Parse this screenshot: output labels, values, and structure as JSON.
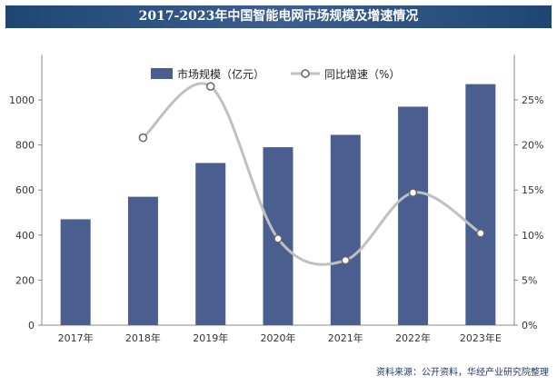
{
  "chart_data": {
    "type": "bar",
    "title": "2017-2023年中国智能电网市场规模及增速情况",
    "categories": [
      "2017年",
      "2018年",
      "2019年",
      "2020年",
      "2021年",
      "2022年",
      "2023年E"
    ],
    "series": [
      {
        "name": "市场规模（亿元）",
        "type": "bar",
        "axis": "left",
        "values": [
          470,
          570,
          720,
          790,
          845,
          970,
          1070
        ],
        "color": "#4a5f8f"
      },
      {
        "name": "同比增速（%）",
        "type": "line",
        "axis": "right",
        "values": [
          null,
          20.8,
          26.5,
          9.6,
          7.2,
          14.7,
          10.2
        ],
        "color": "#c0c0c0"
      }
    ],
    "y_left": {
      "ticks": [
        "0",
        "200",
        "400",
        "600",
        "800",
        "1000"
      ],
      "ylim": [
        0,
        1200
      ]
    },
    "y_right": {
      "ticks": [
        "0%",
        "5%",
        "10%",
        "15%",
        "20%",
        "25%"
      ],
      "ylim": [
        0,
        30
      ]
    },
    "grid": false,
    "legend_position": "top-center"
  },
  "source": "资料来源：公开资料，华经产业研究院整理"
}
